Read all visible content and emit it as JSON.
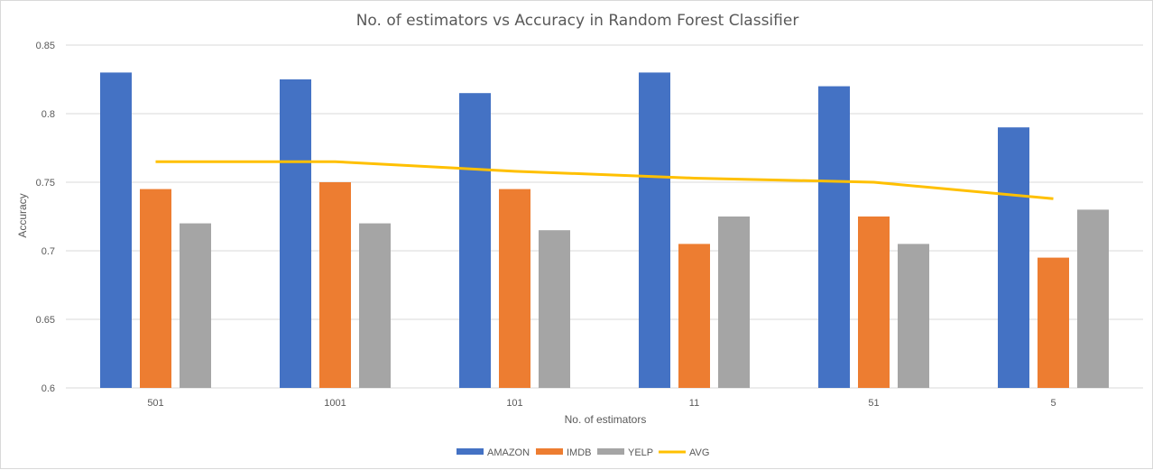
{
  "chart_data": {
    "type": "bar",
    "title": "No. of estimators vs Accuracy in Random Forest Classifier",
    "xlabel": "No. of estimators",
    "ylabel": "Accuracy",
    "categories": [
      "501",
      "1001",
      "101",
      "11",
      "51",
      "5"
    ],
    "ylim": [
      0.6,
      0.85
    ],
    "yticks": [
      0.6,
      0.65,
      0.7,
      0.75,
      0.8,
      0.85
    ],
    "ytick_labels": [
      "0.6",
      "0.65",
      "0.7",
      "0.75",
      "0.8",
      "0.85"
    ],
    "grid": true,
    "legend_position": "bottom",
    "series": [
      {
        "name": "AMAZON",
        "type": "bar",
        "color": "#4472c4",
        "values": [
          0.83,
          0.825,
          0.815,
          0.83,
          0.82,
          0.79
        ]
      },
      {
        "name": "IMDB",
        "type": "bar",
        "color": "#ed7d31",
        "values": [
          0.745,
          0.75,
          0.745,
          0.705,
          0.725,
          0.695
        ]
      },
      {
        "name": "YELP",
        "type": "bar",
        "color": "#a5a5a5",
        "values": [
          0.72,
          0.72,
          0.715,
          0.725,
          0.705,
          0.73
        ]
      },
      {
        "name": "AVG",
        "type": "line",
        "color": "#ffc000",
        "values": [
          0.765,
          0.765,
          0.758,
          0.753,
          0.75,
          0.738
        ]
      }
    ]
  }
}
